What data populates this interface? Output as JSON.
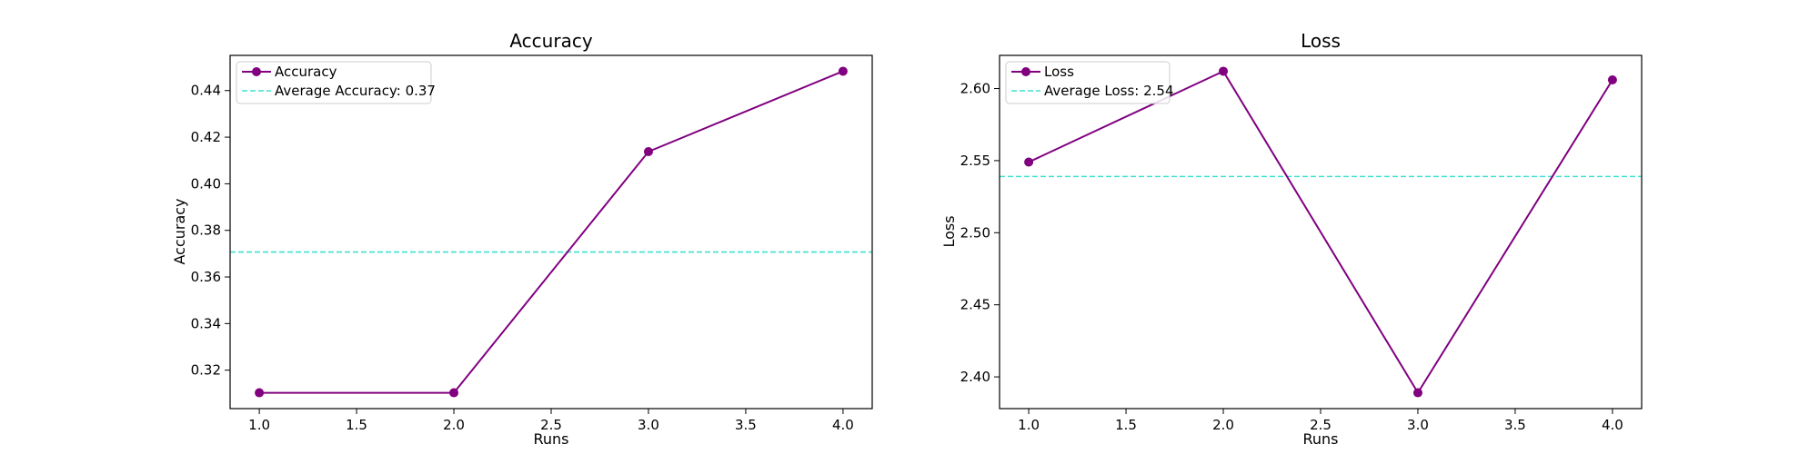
{
  "colors": {
    "series": "#800080",
    "reference": "#40E0D0",
    "axes": "#000000",
    "background": "#ffffff",
    "legend_border": "#cccccc"
  },
  "chart_data": [
    {
      "type": "line",
      "title": "Accuracy",
      "xlabel": "Runs",
      "ylabel": "Accuracy",
      "x": [
        1.0,
        2.0,
        3.0,
        4.0
      ],
      "series": [
        {
          "name": "Accuracy",
          "values": [
            0.3103,
            0.3103,
            0.4138,
            0.4483
          ],
          "marker": "circle"
        }
      ],
      "reference_line": {
        "label": "Average Accuracy: 0.37",
        "value": 0.3707,
        "style": "dashed"
      },
      "xlim": [
        0.85,
        4.15
      ],
      "ylim": [
        0.3035,
        0.4551
      ],
      "xticks": [
        "1.0",
        "1.5",
        "2.0",
        "2.5",
        "3.0",
        "3.5",
        "4.0"
      ],
      "yticks": [
        "0.32",
        "0.34",
        "0.36",
        "0.38",
        "0.40",
        "0.42",
        "0.44"
      ],
      "grid": false,
      "legend_position": "upper-left"
    },
    {
      "type": "line",
      "title": "Loss",
      "xlabel": "Runs",
      "ylabel": "Loss",
      "x": [
        1.0,
        2.0,
        3.0,
        4.0
      ],
      "series": [
        {
          "name": "Loss",
          "values": [
            2.549,
            2.612,
            2.389,
            2.606
          ],
          "marker": "circle"
        }
      ],
      "reference_line": {
        "label": "Average Loss: 2.54",
        "value": 2.539,
        "style": "dashed"
      },
      "xlim": [
        0.85,
        4.15
      ],
      "ylim": [
        2.378,
        2.623
      ],
      "xticks": [
        "1.0",
        "1.5",
        "2.0",
        "2.5",
        "3.0",
        "3.5",
        "4.0"
      ],
      "yticks": [
        "2.40",
        "2.45",
        "2.50",
        "2.55",
        "2.60"
      ],
      "grid": false,
      "legend_position": "upper-left"
    }
  ]
}
